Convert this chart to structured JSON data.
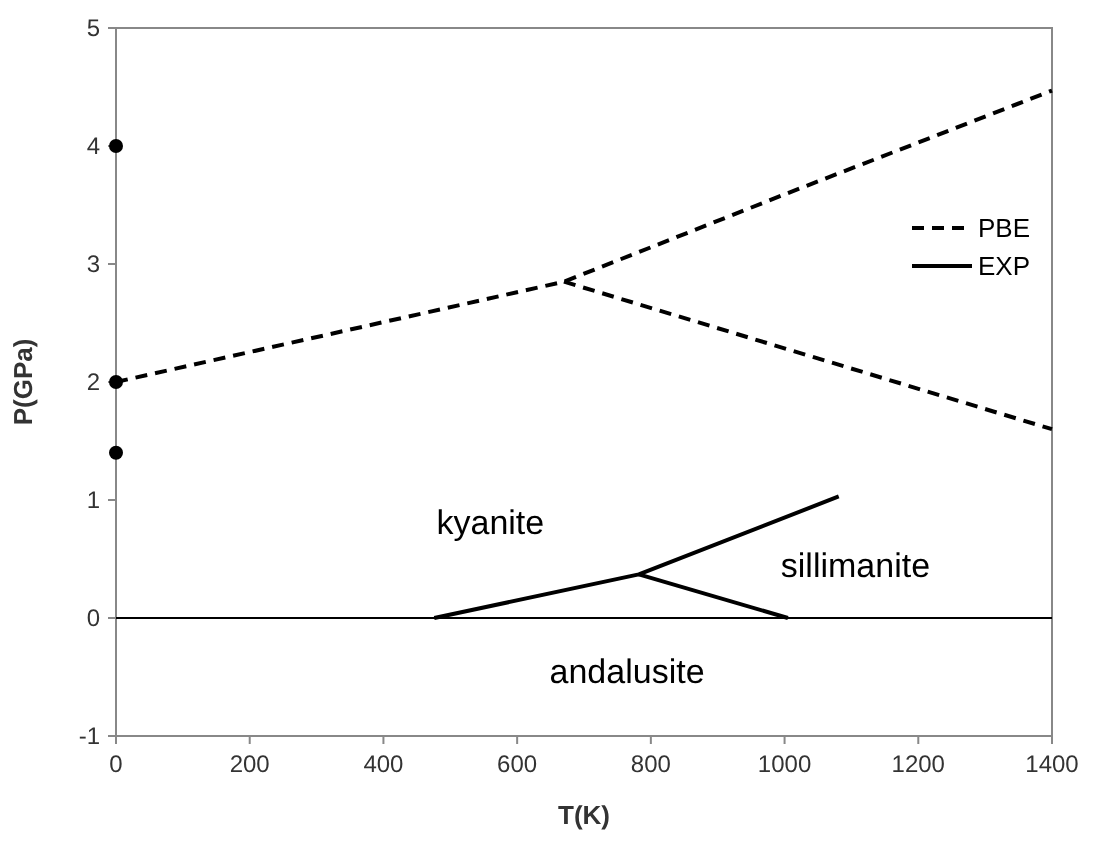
{
  "chart_data": {
    "type": "line",
    "xlabel": "T(K)",
    "ylabel": "P(GPa)",
    "xlim": [
      0,
      1400
    ],
    "xticks": [
      0,
      200,
      400,
      600,
      800,
      1000,
      1200,
      1400
    ],
    "ylim": [
      -1,
      5
    ],
    "yticks": [
      -1,
      0,
      1,
      2,
      3,
      4,
      5
    ],
    "series": [
      {
        "name": "PBE",
        "color": "#000000",
        "line_style": "dashed",
        "marker": "none",
        "x": [
          0,
          670,
          1000,
          1400
        ],
        "values": [
          2,
          2.85,
          3.59,
          4.47
        ]
      },
      {
        "color": "#000000",
        "line_style": "dashed",
        "marker": "none",
        "x": [
          670,
          1400
        ],
        "values": [
          2.85,
          1.6
        ]
      },
      {
        "name": "EXP",
        "color": "#000000",
        "line_style": "solid",
        "marker": "none",
        "x": [
          476,
          782,
          1081
        ],
        "values": [
          0,
          0.37,
          1.03
        ]
      },
      {
        "color": "#000000",
        "line_style": "solid",
        "marker": "none",
        "x": [
          782,
          1005
        ],
        "values": [
          0.37,
          0
        ]
      },
      {
        "type": "scatter",
        "color": "#000000",
        "marker": "circle",
        "x": [
          0,
          0,
          0
        ],
        "values": [
          4,
          2,
          1.4
        ]
      }
    ],
    "ref_lines": [
      {
        "axis": "y",
        "value": 0,
        "color": "#000000"
      }
    ],
    "annotations": [
      "kyanite",
      "sillimanite",
      "andalusite"
    ],
    "legend": "right",
    "grid": false
  }
}
